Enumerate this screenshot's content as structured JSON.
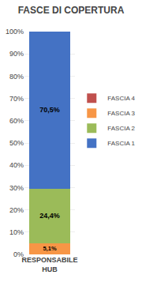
{
  "chart_data": {
    "type": "bar",
    "title": "FASCE DI COPERTURA",
    "categories": [
      "RESPONSABILE\nHUB"
    ],
    "stacked": true,
    "series": [
      {
        "name": "FASCIA 3",
        "color": "#F79646",
        "values": [
          5.1
        ],
        "value_labels": [
          "5,1%"
        ]
      },
      {
        "name": "FASCIA 2",
        "color": "#9BBB59",
        "values": [
          24.4
        ],
        "value_labels": [
          "24,4%"
        ]
      },
      {
        "name": "FASCIA 1",
        "color": "#4472C4",
        "values": [
          70.5
        ],
        "value_labels": [
          "70,5%"
        ]
      },
      {
        "name": "FASCIA 4",
        "color": "#C0504D",
        "values": [
          0.0
        ]
      }
    ],
    "ylim": [
      0,
      100
    ],
    "yticks": [
      {
        "value": 0,
        "label": "0%"
      },
      {
        "value": 10,
        "label": "10%"
      },
      {
        "value": 20,
        "label": "20%"
      },
      {
        "value": 30,
        "label": "30%"
      },
      {
        "value": 40,
        "label": "40%"
      },
      {
        "value": 50,
        "label": "50%"
      },
      {
        "value": 60,
        "label": "60%"
      },
      {
        "value": 70,
        "label": "70%"
      },
      {
        "value": 80,
        "label": "80%"
      },
      {
        "value": 90,
        "label": "90%"
      },
      {
        "value": 100,
        "label": "100%"
      }
    ],
    "grid": true,
    "legend": "right"
  }
}
